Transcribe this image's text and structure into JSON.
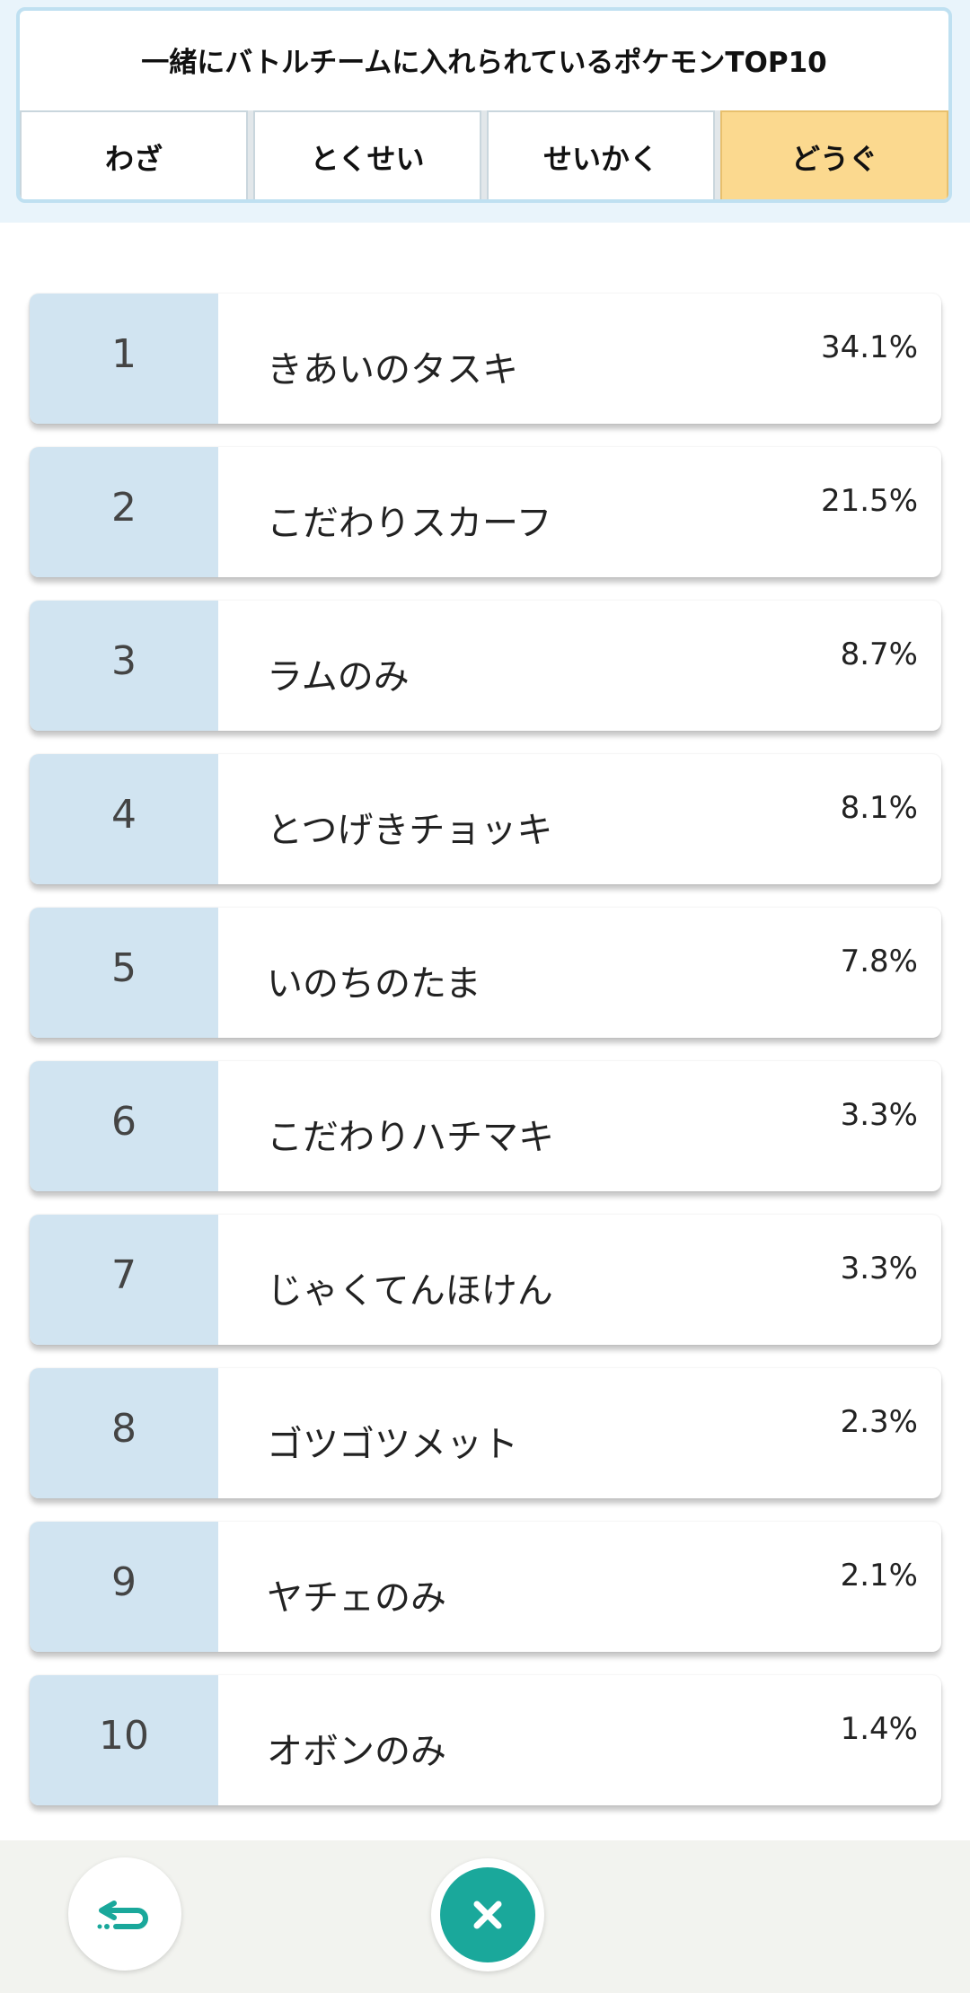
{
  "header": {
    "title": "一緒にバトルチームに入れられているポケモンTOP10",
    "tabs": [
      {
        "label": "わざ",
        "active": false
      },
      {
        "label": "とくせい",
        "active": false
      },
      {
        "label": "せいかく",
        "active": false
      },
      {
        "label": "どうぐ",
        "active": true
      }
    ]
  },
  "ranking": [
    {
      "rank": "1",
      "name": "きあいのタスキ",
      "pct": "34.1%"
    },
    {
      "rank": "2",
      "name": "こだわりスカーフ",
      "pct": "21.5%"
    },
    {
      "rank": "3",
      "name": "ラムのみ",
      "pct": "8.7%"
    },
    {
      "rank": "4",
      "name": "とつげきチョッキ",
      "pct": "8.1%"
    },
    {
      "rank": "5",
      "name": "いのちのたま",
      "pct": "7.8%"
    },
    {
      "rank": "6",
      "name": "こだわりハチマキ",
      "pct": "3.3%"
    },
    {
      "rank": "7",
      "name": "じゃくてんほけん",
      "pct": "3.3%"
    },
    {
      "rank": "8",
      "name": "ゴツゴツメット",
      "pct": "2.3%"
    },
    {
      "rank": "9",
      "name": "ヤチェのみ",
      "pct": "2.1%"
    },
    {
      "rank": "10",
      "name": "オボンのみ",
      "pct": "1.4%"
    }
  ],
  "footer": {
    "back_icon": "back-arrow-icon",
    "close_icon": "close-icon",
    "accent_color": "#1aa89b"
  }
}
